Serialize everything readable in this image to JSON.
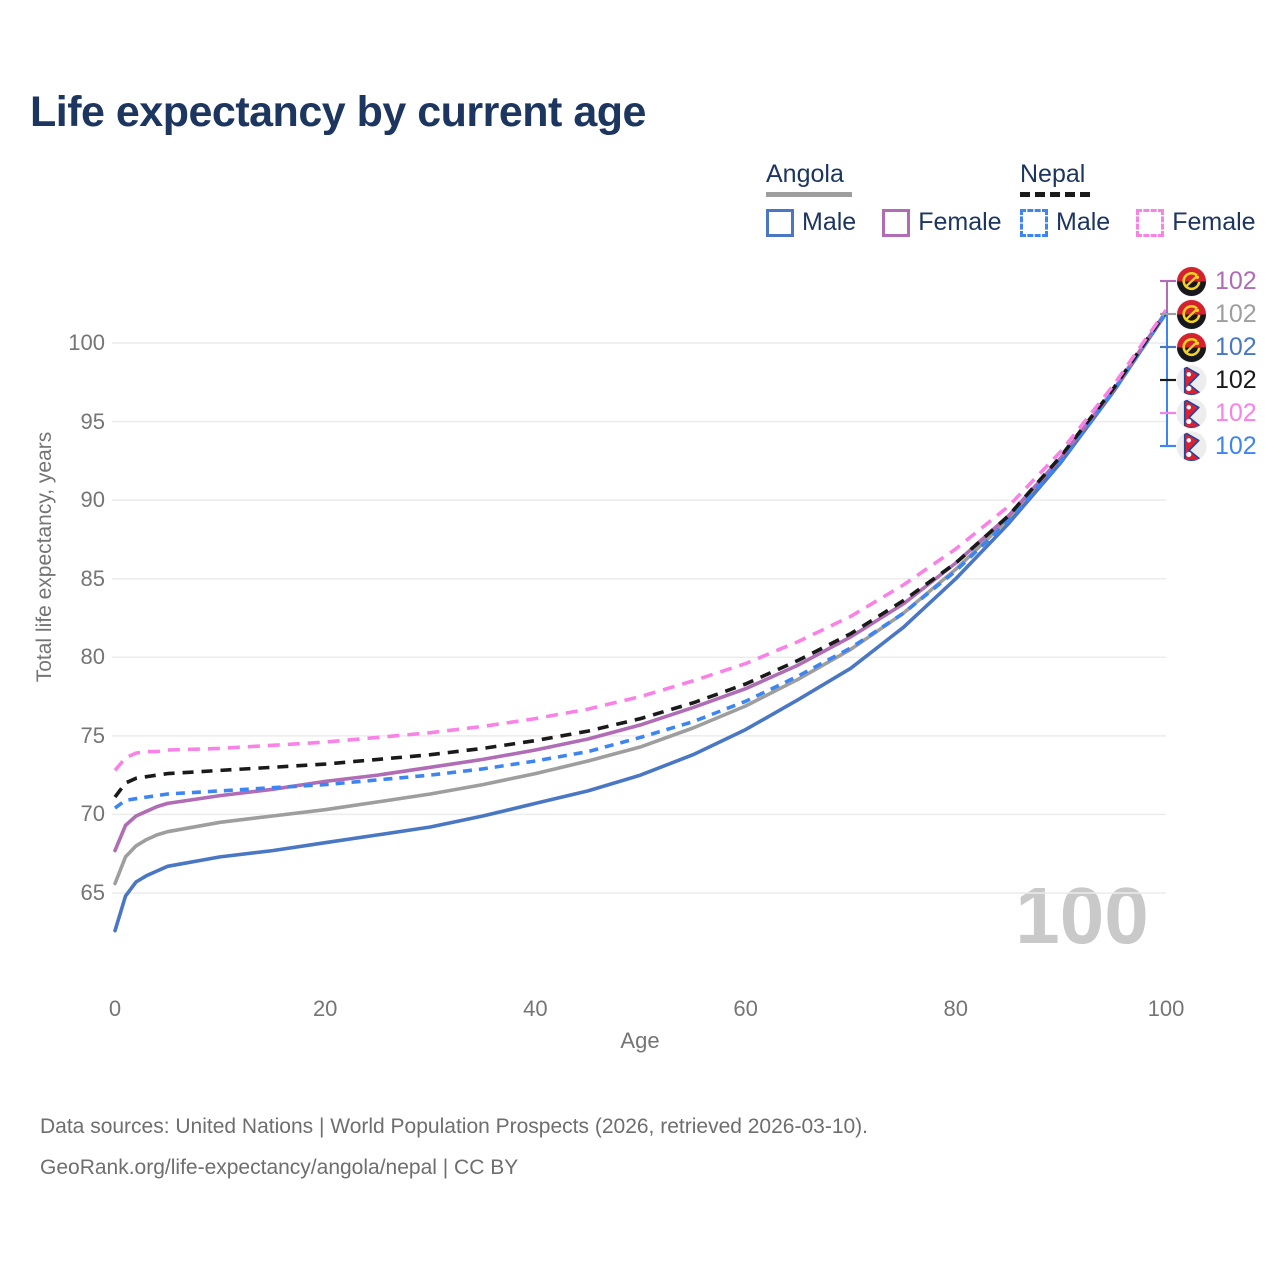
{
  "title": "Life expectancy by current age",
  "legend": {
    "groups": [
      {
        "id": "angola",
        "label": "Angola",
        "line_style": "solid",
        "line_color": "#9e9e9e",
        "items": [
          {
            "label": "Male",
            "color": "#4a77c4"
          },
          {
            "label": "Female",
            "color": "#b06cb5"
          }
        ]
      },
      {
        "id": "nepal",
        "label": "Nepal",
        "line_style": "dashed",
        "line_color": "#1a1a1a",
        "items": [
          {
            "label": "Male",
            "color": "#3d85f0"
          },
          {
            "label": "Female",
            "color": "#f982e6"
          }
        ]
      }
    ]
  },
  "axes": {
    "x": {
      "label": "Age",
      "ticks": [
        "0",
        "20",
        "40",
        "60",
        "80",
        "100"
      ],
      "tick_values": [
        0,
        20,
        40,
        60,
        80,
        100
      ]
    },
    "y": {
      "label": "Total life expectancy, years",
      "ticks": [
        "65",
        "70",
        "75",
        "80",
        "85",
        "90",
        "95",
        "100"
      ],
      "tick_values": [
        65,
        70,
        75,
        80,
        85,
        90,
        95,
        100
      ]
    }
  },
  "watermark": "100",
  "end_labels": [
    {
      "country": "angola",
      "series": "Angola Female",
      "flag_icon": "angola-flag-icon",
      "value": "102",
      "color": "#b06cb5"
    },
    {
      "country": "angola",
      "series": "Angola Both sexes",
      "flag_icon": "angola-flag-icon",
      "value": "102",
      "color": "#9e9e9e"
    },
    {
      "country": "angola",
      "series": "Angola Male",
      "flag_icon": "angola-flag-icon",
      "value": "102",
      "color": "#4a77c4"
    },
    {
      "country": "nepal",
      "series": "Nepal Both sexes",
      "flag_icon": "nepal-flag-icon",
      "value": "102",
      "color": "#1a1a1a"
    },
    {
      "country": "nepal",
      "series": "Nepal Female",
      "flag_icon": "nepal-flag-icon",
      "value": "102",
      "color": "#f982e6"
    },
    {
      "country": "nepal",
      "series": "Nepal Male",
      "flag_icon": "nepal-flag-icon",
      "value": "102",
      "color": "#3d85f0"
    }
  ],
  "footer": {
    "line1": "Data sources: United Nations | World Population Prospects (2026, retrieved 2026-03-10).",
    "line2": "GeoRank.org/life-expectancy/angola/nepal | CC BY"
  },
  "chart_data": {
    "type": "line",
    "title": "Life expectancy by current age",
    "xlabel": "Age",
    "ylabel": "Total life expectancy, years",
    "xlim": [
      0,
      100
    ],
    "ylim": [
      62,
      103
    ],
    "grid": "horizontal",
    "legend_position": "top-right",
    "x": [
      0,
      1,
      2,
      3,
      4,
      5,
      10,
      15,
      20,
      25,
      30,
      35,
      40,
      45,
      50,
      55,
      60,
      65,
      70,
      75,
      80,
      85,
      90,
      95,
      100
    ],
    "series": [
      {
        "name": "Angola Both sexes",
        "color": "#9e9e9e",
        "dash": null,
        "values": [
          65.6,
          67.3,
          68.0,
          68.4,
          68.7,
          68.9,
          69.5,
          69.9,
          70.3,
          70.8,
          71.3,
          71.9,
          72.6,
          73.4,
          74.3,
          75.5,
          76.9,
          78.6,
          80.5,
          82.8,
          85.6,
          88.8,
          92.6,
          97.0,
          101.9
        ]
      },
      {
        "name": "Angola Male",
        "color": "#4a77c4",
        "dash": null,
        "values": [
          62.6,
          64.8,
          65.7,
          66.1,
          66.4,
          66.7,
          67.3,
          67.7,
          68.2,
          68.7,
          69.2,
          69.9,
          70.7,
          71.5,
          72.5,
          73.8,
          75.4,
          77.3,
          79.3,
          81.9,
          85.0,
          88.5,
          92.4,
          96.9,
          101.9
        ]
      },
      {
        "name": "Angola Female",
        "color": "#b06cb5",
        "dash": null,
        "values": [
          67.7,
          69.3,
          69.9,
          70.2,
          70.5,
          70.7,
          71.2,
          71.6,
          72.1,
          72.5,
          73.0,
          73.5,
          74.1,
          74.8,
          75.7,
          76.8,
          78.0,
          79.5,
          81.3,
          83.4,
          86.0,
          89.0,
          92.7,
          97.0,
          102.0
        ]
      },
      {
        "name": "Nepal Male",
        "color": "#3d85f0",
        "dash": [
          9,
          7
        ],
        "values": [
          70.4,
          70.9,
          71.0,
          71.1,
          71.2,
          71.3,
          71.5,
          71.7,
          71.9,
          72.2,
          72.5,
          72.9,
          73.4,
          74.0,
          74.9,
          75.9,
          77.2,
          78.8,
          80.6,
          82.8,
          85.5,
          88.7,
          92.5,
          96.9,
          101.9
        ]
      },
      {
        "name": "Nepal Both sexes",
        "color": "#1a1a1a",
        "dash": [
          11,
          8
        ],
        "values": [
          71.1,
          72.0,
          72.3,
          72.4,
          72.5,
          72.6,
          72.8,
          73.0,
          73.2,
          73.5,
          73.8,
          74.2,
          74.7,
          75.3,
          76.1,
          77.1,
          78.3,
          79.8,
          81.5,
          83.6,
          86.0,
          89.0,
          92.8,
          97.1,
          102.0
        ]
      },
      {
        "name": "Nepal Female",
        "color": "#f982e6",
        "dash": [
          12,
          8
        ],
        "values": [
          72.8,
          73.6,
          73.9,
          74.0,
          74.0,
          74.1,
          74.2,
          74.4,
          74.6,
          74.9,
          75.2,
          75.6,
          76.1,
          76.7,
          77.5,
          78.5,
          79.6,
          81.0,
          82.6,
          84.6,
          86.9,
          89.6,
          93.1,
          97.3,
          102.1
        ]
      }
    ],
    "end_value_label": "102"
  }
}
